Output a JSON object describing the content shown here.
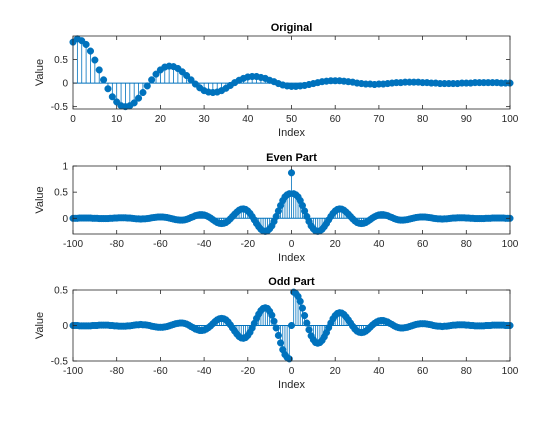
{
  "chart_data": [
    {
      "type": "stem",
      "title": "Original",
      "xlabel": "Index",
      "ylabel": "Value",
      "xlim": [
        0,
        100
      ],
      "ylim": [
        -0.55,
        1.0
      ],
      "xticks": [
        0,
        10,
        20,
        30,
        40,
        50,
        60,
        70,
        80,
        90,
        100
      ],
      "yticks": [
        -0.5,
        0,
        0.5
      ],
      "ytick_labels": [
        "-0.5",
        "0",
        "0.5"
      ],
      "x_start": 0,
      "values": [
        0.87,
        0.94,
        0.9,
        0.82,
        0.68,
        0.49,
        0.28,
        0.07,
        -0.12,
        -0.29,
        -0.4,
        -0.48,
        -0.5,
        -0.48,
        -0.42,
        -0.32,
        -0.2,
        -0.06,
        0.07,
        0.19,
        0.28,
        0.34,
        0.36,
        0.35,
        0.31,
        0.24,
        0.16,
        0.07,
        -0.02,
        -0.1,
        -0.16,
        -0.19,
        -0.2,
        -0.19,
        -0.16,
        -0.11,
        -0.05,
        0.01,
        0.06,
        0.1,
        0.13,
        0.14,
        0.14,
        0.12,
        0.1,
        0.06,
        0.03,
        -0.01,
        -0.04,
        -0.06,
        -0.07,
        -0.07,
        -0.06,
        -0.05,
        -0.03,
        -0.01,
        0.01,
        0.03,
        0.04,
        0.05,
        0.05,
        0.05,
        0.04,
        0.03,
        0.02,
        0.0,
        -0.01,
        -0.02,
        -0.02,
        -0.03,
        -0.02,
        -0.02,
        -0.01,
        0.0,
        0.01,
        0.01,
        0.02,
        0.02,
        0.02,
        0.02,
        0.01,
        0.01,
        0.0,
        0.0,
        -0.01,
        -0.01,
        -0.01,
        -0.01,
        -0.01,
        0.0,
        0.0,
        0.0,
        0.01,
        0.01,
        0.01,
        0.01,
        0.01,
        0.01,
        0.0,
        0.0,
        0.0
      ],
      "color": "#0072BD"
    },
    {
      "type": "stem",
      "title": "Even Part",
      "xlabel": "Index",
      "ylabel": "Value",
      "xlim": [
        -100,
        100
      ],
      "ylim": [
        -0.3,
        1.0
      ],
      "xticks": [
        -100,
        -80,
        -60,
        -40,
        -20,
        0,
        20,
        40,
        60,
        80,
        100
      ],
      "yticks": [
        0,
        0.5,
        1
      ],
      "ytick_labels": [
        "0",
        "0.5",
        "1"
      ],
      "derive": "even",
      "color": "#0072BD"
    },
    {
      "type": "stem",
      "title": "Odd Part",
      "xlabel": "Index",
      "ylabel": "Value",
      "xlim": [
        -100,
        100
      ],
      "ylim": [
        -0.5,
        0.5
      ],
      "xticks": [
        -100,
        -80,
        -60,
        -40,
        -20,
        0,
        20,
        40,
        60,
        80,
        100
      ],
      "yticks": [
        -0.5,
        0,
        0.5
      ],
      "ytick_labels": [
        "-0.5",
        "0",
        "0.5"
      ],
      "derive": "odd",
      "color": "#0072BD"
    }
  ]
}
